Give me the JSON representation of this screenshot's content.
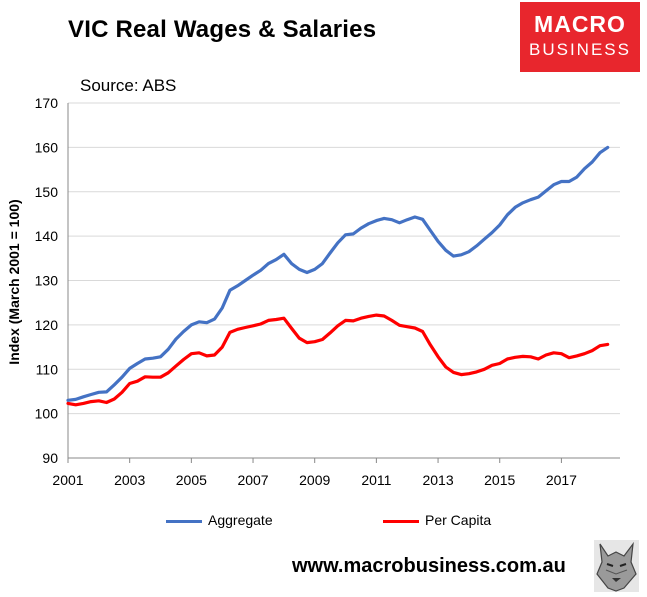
{
  "title": "VIC Real Wages & Salaries",
  "source": "Source: ABS",
  "logo": {
    "line1": "MACRO",
    "line2": "BUSINESS"
  },
  "footer": "www.macrobusiness.com.au",
  "colors": {
    "aggregate": "#4472c4",
    "per_capita": "#ff0000",
    "logo_bg": "#e8262d"
  },
  "chart_data": {
    "type": "line",
    "title": "VIC Real Wages & Salaries",
    "ylabel": "Index (March 2001 = 100)",
    "ylim": [
      90,
      170
    ],
    "yticks": [
      90,
      100,
      110,
      120,
      130,
      140,
      150,
      160,
      170
    ],
    "xlim": [
      2001,
      2018.9
    ],
    "xticks": [
      2001,
      2003,
      2005,
      2007,
      2009,
      2011,
      2013,
      2015,
      2017
    ],
    "grid": true,
    "legend": "bottom",
    "series": [
      {
        "name": "Aggregate",
        "color": "#4472c4",
        "points": [
          [
            2001.0,
            103.0
          ],
          [
            2001.25,
            103.2
          ],
          [
            2001.5,
            103.8
          ],
          [
            2001.75,
            104.3
          ],
          [
            2002.0,
            104.8
          ],
          [
            2002.25,
            104.9
          ],
          [
            2002.5,
            106.5
          ],
          [
            2002.75,
            108.2
          ],
          [
            2003.0,
            110.2
          ],
          [
            2003.25,
            111.3
          ],
          [
            2003.5,
            112.3
          ],
          [
            2003.75,
            112.5
          ],
          [
            2004.0,
            112.8
          ],
          [
            2004.25,
            114.5
          ],
          [
            2004.5,
            116.8
          ],
          [
            2004.75,
            118.5
          ],
          [
            2005.0,
            120.0
          ],
          [
            2005.25,
            120.7
          ],
          [
            2005.5,
            120.5
          ],
          [
            2005.75,
            121.3
          ],
          [
            2006.0,
            123.8
          ],
          [
            2006.25,
            127.8
          ],
          [
            2006.5,
            128.8
          ],
          [
            2006.75,
            130.0
          ],
          [
            2007.0,
            131.2
          ],
          [
            2007.25,
            132.3
          ],
          [
            2007.5,
            133.8
          ],
          [
            2007.75,
            134.7
          ],
          [
            2008.0,
            135.9
          ],
          [
            2008.25,
            133.8
          ],
          [
            2008.5,
            132.5
          ],
          [
            2008.75,
            131.8
          ],
          [
            2009.0,
            132.5
          ],
          [
            2009.25,
            133.8
          ],
          [
            2009.5,
            136.2
          ],
          [
            2009.75,
            138.5
          ],
          [
            2010.0,
            140.3
          ],
          [
            2010.25,
            140.5
          ],
          [
            2010.5,
            141.8
          ],
          [
            2010.75,
            142.8
          ],
          [
            2011.0,
            143.5
          ],
          [
            2011.25,
            144.0
          ],
          [
            2011.5,
            143.7
          ],
          [
            2011.75,
            143.0
          ],
          [
            2012.0,
            143.7
          ],
          [
            2012.25,
            144.3
          ],
          [
            2012.5,
            143.8
          ],
          [
            2012.75,
            141.3
          ],
          [
            2013.0,
            138.8
          ],
          [
            2013.25,
            136.8
          ],
          [
            2013.5,
            135.5
          ],
          [
            2013.75,
            135.8
          ],
          [
            2014.0,
            136.5
          ],
          [
            2014.25,
            137.8
          ],
          [
            2014.5,
            139.3
          ],
          [
            2014.75,
            140.8
          ],
          [
            2015.0,
            142.5
          ],
          [
            2015.25,
            144.8
          ],
          [
            2015.5,
            146.5
          ],
          [
            2015.75,
            147.5
          ],
          [
            2016.0,
            148.2
          ],
          [
            2016.25,
            148.8
          ],
          [
            2016.5,
            150.2
          ],
          [
            2016.75,
            151.6
          ],
          [
            2017.0,
            152.3
          ],
          [
            2017.25,
            152.3
          ],
          [
            2017.5,
            153.3
          ],
          [
            2017.75,
            155.2
          ],
          [
            2018.0,
            156.7
          ],
          [
            2018.25,
            158.8
          ],
          [
            2018.5,
            160.0
          ]
        ]
      },
      {
        "name": "Per Capita",
        "color": "#ff0000",
        "points": [
          [
            2001.0,
            102.3
          ],
          [
            2001.25,
            102.0
          ],
          [
            2001.5,
            102.3
          ],
          [
            2001.75,
            102.7
          ],
          [
            2002.0,
            102.9
          ],
          [
            2002.25,
            102.5
          ],
          [
            2002.5,
            103.3
          ],
          [
            2002.75,
            104.8
          ],
          [
            2003.0,
            106.8
          ],
          [
            2003.25,
            107.3
          ],
          [
            2003.5,
            108.3
          ],
          [
            2003.75,
            108.2
          ],
          [
            2004.0,
            108.2
          ],
          [
            2004.25,
            109.2
          ],
          [
            2004.5,
            110.7
          ],
          [
            2004.75,
            112.2
          ],
          [
            2005.0,
            113.5
          ],
          [
            2005.25,
            113.7
          ],
          [
            2005.5,
            113.0
          ],
          [
            2005.75,
            113.2
          ],
          [
            2006.0,
            115.0
          ],
          [
            2006.25,
            118.3
          ],
          [
            2006.5,
            119.0
          ],
          [
            2006.75,
            119.4
          ],
          [
            2007.0,
            119.8
          ],
          [
            2007.25,
            120.2
          ],
          [
            2007.5,
            121.0
          ],
          [
            2007.75,
            121.2
          ],
          [
            2008.0,
            121.5
          ],
          [
            2008.25,
            119.2
          ],
          [
            2008.5,
            117.0
          ],
          [
            2008.75,
            116.0
          ],
          [
            2009.0,
            116.2
          ],
          [
            2009.25,
            116.7
          ],
          [
            2009.5,
            118.2
          ],
          [
            2009.75,
            119.8
          ],
          [
            2010.0,
            121.0
          ],
          [
            2010.25,
            120.9
          ],
          [
            2010.5,
            121.5
          ],
          [
            2010.75,
            121.9
          ],
          [
            2011.0,
            122.2
          ],
          [
            2011.25,
            122.0
          ],
          [
            2011.5,
            121.0
          ],
          [
            2011.75,
            119.9
          ],
          [
            2012.0,
            119.6
          ],
          [
            2012.25,
            119.3
          ],
          [
            2012.5,
            118.5
          ],
          [
            2012.75,
            115.5
          ],
          [
            2013.0,
            112.8
          ],
          [
            2013.25,
            110.5
          ],
          [
            2013.5,
            109.3
          ],
          [
            2013.75,
            108.8
          ],
          [
            2014.0,
            109.0
          ],
          [
            2014.25,
            109.4
          ],
          [
            2014.5,
            110.0
          ],
          [
            2014.75,
            110.9
          ],
          [
            2015.0,
            111.3
          ],
          [
            2015.25,
            112.3
          ],
          [
            2015.5,
            112.7
          ],
          [
            2015.75,
            112.9
          ],
          [
            2016.0,
            112.8
          ],
          [
            2016.25,
            112.3
          ],
          [
            2016.5,
            113.2
          ],
          [
            2016.75,
            113.7
          ],
          [
            2017.0,
            113.5
          ],
          [
            2017.25,
            112.6
          ],
          [
            2017.5,
            113.0
          ],
          [
            2017.75,
            113.5
          ],
          [
            2018.0,
            114.2
          ],
          [
            2018.25,
            115.3
          ],
          [
            2018.5,
            115.6
          ]
        ]
      }
    ]
  }
}
